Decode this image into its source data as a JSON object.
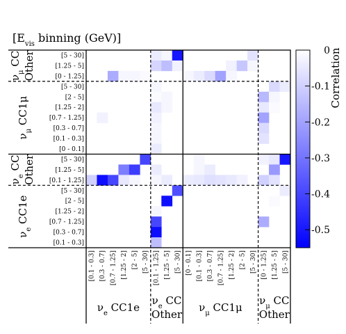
{
  "chart_data": {
    "type": "heatmap",
    "title": "[E_vis binning (GeV)]",
    "title_parts": {
      "pre": "[E",
      "sub": "vis",
      "post": " binning (GeV)]"
    },
    "colorbar": {
      "label": "Correlation",
      "min": -0.55,
      "max": 0,
      "ticks": [
        0,
        -0.1,
        -0.2,
        -0.3,
        -0.4,
        -0.5
      ],
      "tick_labels": [
        "0",
        "-0.1",
        "-0.2",
        "-0.3",
        "-0.4",
        "-0.5"
      ],
      "color_zero": "#ffffff",
      "color_min": "#0000ff"
    },
    "column_groups": [
      {
        "key": "ve_cc1e",
        "lines": [
          {
            "pre": "ν",
            "sub": "e",
            "post": " CC1e"
          }
        ],
        "bins": [
          "[0.1 - 0.3]",
          "[0.3 - 0.7]",
          "[0.7 - 1.25]",
          "[1.25 - 2]",
          "[2 - 5]",
          "[5 - 30]"
        ]
      },
      {
        "key": "ve_ccother",
        "lines": [
          {
            "pre": "ν",
            "sub": "e",
            "post": " CC"
          },
          {
            "pre": "Other",
            "sub": "",
            "post": ""
          }
        ],
        "bins": [
          "[0.1 - 1.25]",
          "[1.25 - 5]",
          "[5 - 30]"
        ]
      },
      {
        "key": "vmu_cc1mu",
        "lines": [
          {
            "pre": "ν",
            "sub": "μ",
            "post": " CC1μ"
          }
        ],
        "bins": [
          "[0 - 0.1]",
          "[0.1 - 0.3]",
          "[0.3 - 0.7]",
          "[0.7 - 1.25]",
          "[1.25 - 2]",
          "[2 - 5]",
          "[5 - 30]"
        ]
      },
      {
        "key": "vmu_ccother",
        "lines": [
          {
            "pre": "ν",
            "sub": "μ",
            "post": " CC"
          },
          {
            "pre": "Other",
            "sub": "",
            "post": ""
          }
        ],
        "bins": [
          "[0 - 1.25]",
          "[1.25 - 5]",
          "[5 - 30]"
        ]
      }
    ],
    "row_groups": [
      {
        "key": "vmu_ccother",
        "lines": [
          {
            "pre": "ν",
            "sub": "μ",
            "post": " CC"
          },
          {
            "pre": "Other",
            "sub": "",
            "post": ""
          }
        ],
        "bins": [
          "[5 - 30]",
          "[1.25 - 5]",
          "[0 - 1.25]"
        ]
      },
      {
        "key": "vmu_cc1mu",
        "lines": [
          {
            "pre": "ν",
            "sub": "μ",
            "post": " CC1μ"
          }
        ],
        "bins": [
          "[5 - 30]",
          "[2 - 5]",
          "[1.25 - 2]",
          "[0.7 - 1.25]",
          "[0.3 - 0.7]",
          "[0.1 - 0.3]",
          "[0 - 0.1]"
        ]
      },
      {
        "key": "ve_ccother",
        "lines": [
          {
            "pre": "ν",
            "sub": "e",
            "post": " CC"
          },
          {
            "pre": "Other",
            "sub": "",
            "post": ""
          }
        ],
        "bins": [
          "[5 - 30]",
          "[1.25 - 5]",
          "[0.1 - 1.25]"
        ]
      },
      {
        "key": "ve_cc1e",
        "lines": [
          {
            "pre": "ν",
            "sub": "e",
            "post": " CC1e"
          }
        ],
        "bins": [
          "[5 - 30]",
          "[2 - 5]",
          "[1.25 - 2]",
          "[0.7 - 1.25]",
          "[0.3 - 0.7]",
          "[0.1 - 0.3]"
        ]
      }
    ],
    "matrix": [
      [
        0,
        0,
        0,
        0,
        0,
        0,
        -0.04,
        -0.02,
        -0.5,
        0,
        0,
        0,
        0,
        0,
        0,
        -0.06,
        0,
        0,
        0
      ],
      [
        0,
        0,
        0,
        0,
        0,
        0,
        -0.09,
        -0.14,
        -0.03,
        0,
        0,
        0,
        0,
        -0.03,
        -0.12,
        -0.02,
        0,
        0,
        0
      ],
      [
        0,
        0,
        -0.18,
        -0.02,
        -0.02,
        -0.01,
        0,
        0,
        0,
        -0.02,
        -0.04,
        -0.08,
        -0.2,
        -0.02,
        0,
        0,
        0,
        0,
        0
      ],
      [
        0,
        0,
        0,
        0,
        0,
        0,
        -0.02,
        0,
        0,
        0,
        0,
        0,
        0,
        0,
        0,
        0,
        0,
        -0.08,
        -0.04
      ],
      [
        0,
        0,
        0,
        0,
        0,
        0,
        -0.01,
        -0.02,
        0,
        0,
        0,
        0,
        0,
        0,
        0,
        0,
        -0.15,
        -0.02,
        0
      ],
      [
        0,
        0,
        0,
        0,
        0,
        0,
        -0.05,
        -0.02,
        0,
        0,
        0,
        0,
        0,
        0,
        0,
        0,
        -0.05,
        -0.01,
        0
      ],
      [
        0,
        -0.03,
        0,
        0,
        0,
        0,
        -0.03,
        0,
        0,
        0,
        0,
        0,
        0,
        0,
        0,
        0,
        -0.2,
        0,
        0
      ],
      [
        0,
        0,
        0,
        0,
        0,
        0,
        -0.02,
        0,
        0,
        0,
        0,
        0,
        0,
        0,
        0,
        0,
        -0.08,
        0,
        0
      ],
      [
        0,
        0,
        0,
        0,
        0,
        0,
        -0.02,
        0,
        0,
        0,
        0,
        0,
        0,
        0,
        0,
        0,
        -0.06,
        0,
        0
      ],
      [
        0,
        0,
        0,
        0,
        0,
        0,
        -0.04,
        0,
        0,
        0,
        0,
        0,
        0,
        0,
        0,
        0,
        0,
        0,
        0
      ],
      [
        0,
        0,
        0,
        0,
        0,
        -0.4,
        0,
        0,
        0,
        0,
        -0.02,
        0,
        0,
        0,
        0,
        0,
        -0.03,
        -0.05,
        -0.5
      ],
      [
        0,
        0,
        0,
        -0.28,
        -0.42,
        0,
        -0.04,
        0,
        0,
        0,
        -0.02,
        -0.04,
        0,
        0,
        0,
        0,
        0,
        -0.22,
        0
      ],
      [
        -0.1,
        -0.52,
        -0.4,
        -0.05,
        -0.02,
        0,
        -0.02,
        -0.04,
        0,
        -0.04,
        -0.05,
        -0.07,
        -0.06,
        -0.05,
        -0.03,
        0,
        -0.1,
        -0.06,
        0
      ],
      [
        0,
        0,
        0,
        0,
        0,
        0,
        0,
        0,
        -0.38,
        0,
        0,
        0,
        0,
        0,
        0,
        0,
        0,
        0,
        -0.04
      ],
      [
        0,
        0,
        0,
        0,
        0,
        0,
        0,
        -0.52,
        0,
        0,
        0,
        0,
        0,
        0,
        0,
        0,
        0,
        -0.01,
        0
      ],
      [
        0,
        0,
        0,
        0,
        0,
        0,
        -0.02,
        0,
        0,
        0,
        0,
        0,
        0,
        0,
        0,
        0,
        0,
        0,
        0
      ],
      [
        0,
        0,
        0,
        0,
        0,
        0,
        -0.4,
        0,
        0,
        0,
        0,
        0,
        0,
        0,
        0,
        0,
        -0.18,
        0,
        0
      ],
      [
        0,
        0,
        0,
        0,
        0,
        0,
        -0.52,
        0,
        0,
        0,
        0,
        0,
        0,
        0,
        0,
        0,
        0,
        0,
        0
      ],
      [
        0,
        0,
        0,
        0,
        0,
        0,
        -0.14,
        0,
        0,
        0,
        0,
        0,
        0,
        0,
        0,
        0,
        0,
        0,
        0
      ]
    ]
  }
}
